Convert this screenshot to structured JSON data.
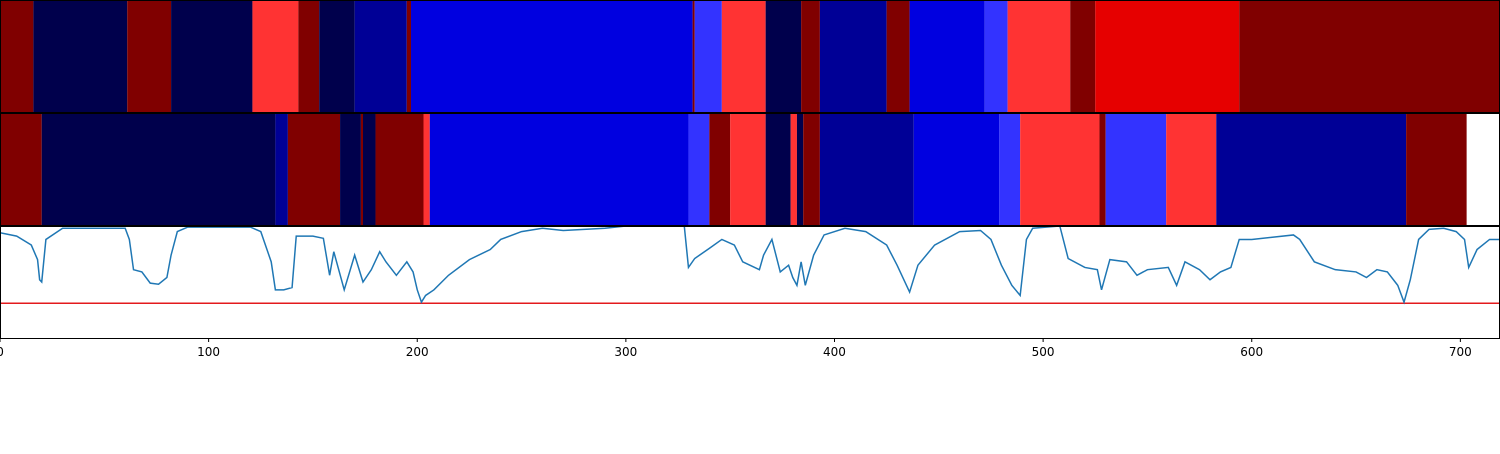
{
  "chart_data": {
    "type": "segmentation",
    "xlim": [
      0,
      719
    ],
    "xticks": [
      0,
      100,
      200,
      300,
      400,
      500,
      600,
      700
    ],
    "bands": [
      {
        "edges": [
          0,
          16,
          61,
          82,
          121,
          143,
          153,
          170,
          195,
          197,
          332,
          333,
          346,
          367,
          384,
          393,
          425,
          436,
          472,
          483,
          513,
          525,
          594,
          719
        ],
        "colors": [
          "#800000",
          "#00004c",
          "#800000",
          "#00004c",
          "#ff3333",
          "#800000",
          "#00004c",
          "#000096",
          "#800000",
          "#0000e0",
          "#800000",
          "#3333ff",
          "#ff3333",
          "#00004c",
          "#800000",
          "#000096",
          "#800000",
          "#0000e0",
          "#3333ff",
          "#ff3333",
          "#800000",
          "#e60000",
          "#800000"
        ]
      },
      {
        "edges": [
          0,
          20,
          132,
          138,
          163,
          173,
          174,
          180,
          203,
          206,
          330,
          340,
          350,
          367,
          379,
          382,
          385,
          393,
          438,
          479,
          489,
          527,
          530,
          559,
          583,
          674,
          703
        ],
        "colors": [
          "#800000",
          "#00004c",
          "#000096",
          "#800000",
          "#00004c",
          "#800000",
          "#00004c",
          "#800000",
          "#ff3333",
          "#0000e0",
          "#3333ff",
          "#800000",
          "#ff3333",
          "#00004c",
          "#ff3333",
          "#00004c",
          "#800000",
          "#000096",
          "#0000e0",
          "#3333ff",
          "#ff3333",
          "#800000",
          "#3333ff",
          "#ff3333",
          "#000096",
          "#800000"
        ]
      }
    ],
    "ylim": [
      0,
      1
    ],
    "line": {
      "color": "#1f77b4",
      "x": [
        0,
        8,
        15,
        18,
        19,
        20,
        22,
        30,
        60,
        62,
        64,
        68,
        72,
        76,
        80,
        82,
        85,
        90,
        120,
        125,
        130,
        132,
        136,
        140,
        142,
        150,
        155,
        158,
        160,
        165,
        170,
        174,
        178,
        182,
        185,
        190,
        195,
        198,
        200,
        202,
        204,
        208,
        215,
        225,
        235,
        240,
        250,
        260,
        270,
        290,
        300,
        328,
        330,
        333,
        340,
        346,
        352,
        356,
        364,
        366,
        370,
        374,
        378,
        380,
        382,
        384,
        386,
        390,
        395,
        405,
        415,
        425,
        430,
        436,
        440,
        448,
        460,
        470,
        475,
        480,
        485,
        489,
        492,
        495,
        508,
        512,
        520,
        526,
        528,
        532,
        540,
        545,
        550,
        560,
        564,
        568,
        575,
        580,
        585,
        590,
        594,
        600,
        620,
        623,
        630,
        640,
        650,
        655,
        660,
        665,
        670,
        673,
        676,
        680,
        685,
        692,
        698,
        702,
        704,
        708,
        714,
        719
      ],
      "values": [
        0.94,
        0.91,
        0.83,
        0.7,
        0.52,
        0.5,
        0.88,
        0.98,
        0.98,
        0.88,
        0.61,
        0.59,
        0.49,
        0.48,
        0.54,
        0.74,
        0.95,
        0.99,
        0.99,
        0.95,
        0.68,
        0.43,
        0.43,
        0.45,
        0.91,
        0.91,
        0.89,
        0.56,
        0.77,
        0.43,
        0.74,
        0.5,
        0.61,
        0.77,
        0.68,
        0.56,
        0.68,
        0.59,
        0.43,
        0.32,
        0.38,
        0.43,
        0.56,
        0.7,
        0.79,
        0.88,
        0.95,
        0.98,
        0.96,
        0.98,
        1.0,
        1.0,
        0.63,
        0.71,
        0.8,
        0.88,
        0.83,
        0.68,
        0.61,
        0.74,
        0.88,
        0.59,
        0.65,
        0.54,
        0.47,
        0.68,
        0.47,
        0.74,
        0.92,
        0.98,
        0.95,
        0.83,
        0.65,
        0.41,
        0.65,
        0.83,
        0.95,
        0.96,
        0.88,
        0.65,
        0.47,
        0.38,
        0.88,
        0.98,
        1.0,
        0.71,
        0.63,
        0.61,
        0.43,
        0.7,
        0.68,
        0.56,
        0.61,
        0.63,
        0.47,
        0.68,
        0.61,
        0.52,
        0.59,
        0.63,
        0.88,
        0.88,
        0.92,
        0.88,
        0.68,
        0.61,
        0.59,
        0.54,
        0.61,
        0.59,
        0.47,
        0.32,
        0.52,
        0.88,
        0.97,
        0.98,
        0.95,
        0.88,
        0.63,
        0.79,
        0.88,
        0.88
      ]
    },
    "hline": 0.31,
    "hline_color": "#e31a1c"
  }
}
